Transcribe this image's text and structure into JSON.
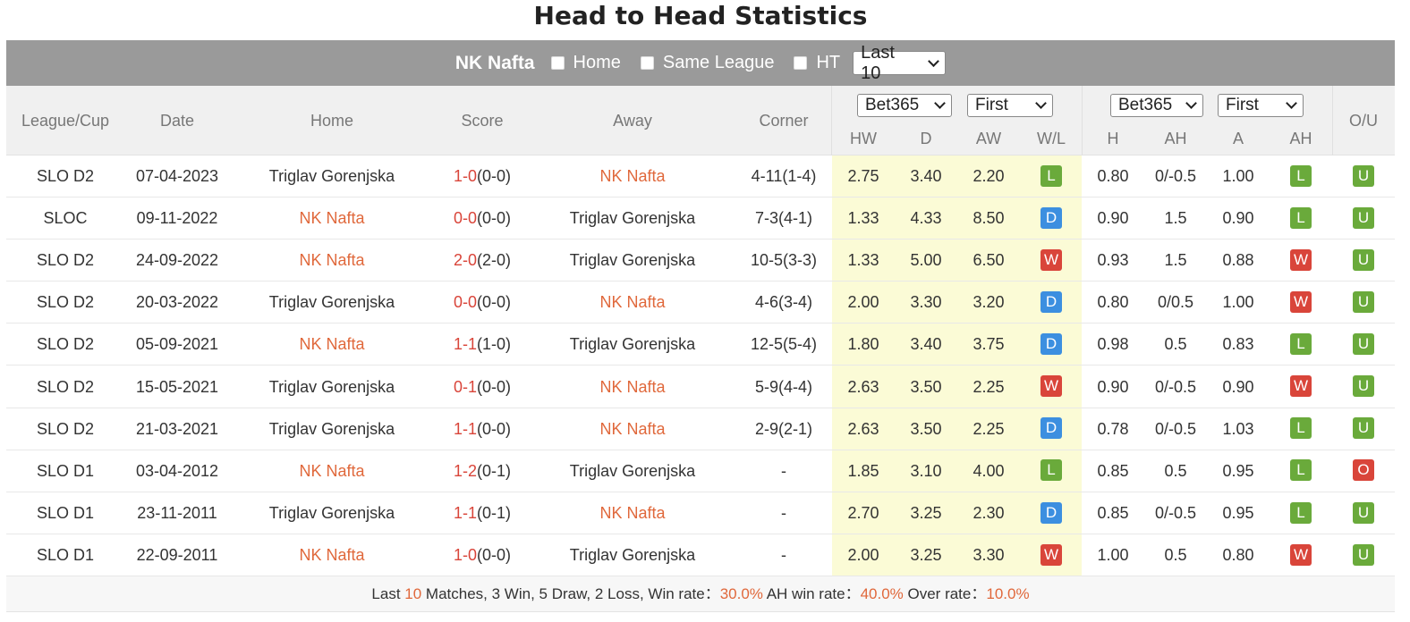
{
  "title": "Head to Head Statistics",
  "toolbar": {
    "team": "NK Nafta",
    "home_label": "Home",
    "same_league_label": "Same League",
    "ht_label": "HT",
    "range_select": "Last 10"
  },
  "header": {
    "league": "League/Cup",
    "date": "Date",
    "home": "Home",
    "score": "Score",
    "away": "Away",
    "corner": "Corner",
    "odds_book_1": "Bet365",
    "odds_type_1": "First",
    "odds_book_2": "Bet365",
    "odds_type_2": "First",
    "hw": "HW",
    "d": "D",
    "aw": "AW",
    "wl": "W/L",
    "h": "H",
    "ah": "AH",
    "a": "A",
    "ah2": "AH",
    "ou": "O/U"
  },
  "rows": [
    {
      "league": "SLO D2",
      "date": "07-04-2023",
      "home": "Triglav Gorenjska",
      "home_hl": false,
      "score": "1-0",
      "ht": "(0-0)",
      "away": "NK Nafta",
      "away_hl": true,
      "corner": "4-11(1-4)",
      "hw": "2.75",
      "d": "3.40",
      "aw": "2.20",
      "wl": "L",
      "h": "0.80",
      "ah": "0/-0.5",
      "a": "1.00",
      "ahr": "L",
      "ou": "U"
    },
    {
      "league": "SLOC",
      "date": "09-11-2022",
      "home": "NK Nafta",
      "home_hl": true,
      "score": "0-0",
      "ht": "(0-0)",
      "away": "Triglav Gorenjska",
      "away_hl": false,
      "corner": "7-3(4-1)",
      "hw": "1.33",
      "d": "4.33",
      "aw": "8.50",
      "wl": "D",
      "h": "0.90",
      "ah": "1.5",
      "a": "0.90",
      "ahr": "L",
      "ou": "U"
    },
    {
      "league": "SLO D2",
      "date": "24-09-2022",
      "home": "NK Nafta",
      "home_hl": true,
      "score": "2-0",
      "ht": "(2-0)",
      "away": "Triglav Gorenjska",
      "away_hl": false,
      "corner": "10-5(3-3)",
      "hw": "1.33",
      "d": "5.00",
      "aw": "6.50",
      "wl": "W",
      "h": "0.93",
      "ah": "1.5",
      "a": "0.88",
      "ahr": "W",
      "ou": "U"
    },
    {
      "league": "SLO D2",
      "date": "20-03-2022",
      "home": "Triglav Gorenjska",
      "home_hl": false,
      "score": "0-0",
      "ht": "(0-0)",
      "away": "NK Nafta",
      "away_hl": true,
      "corner": "4-6(3-4)",
      "hw": "2.00",
      "d": "3.30",
      "aw": "3.20",
      "wl": "D",
      "h": "0.80",
      "ah": "0/0.5",
      "a": "1.00",
      "ahr": "W",
      "ou": "U"
    },
    {
      "league": "SLO D2",
      "date": "05-09-2021",
      "home": "NK Nafta",
      "home_hl": true,
      "score": "1-1",
      "ht": "(1-0)",
      "away": "Triglav Gorenjska",
      "away_hl": false,
      "corner": "12-5(5-4)",
      "hw": "1.80",
      "d": "3.40",
      "aw": "3.75",
      "wl": "D",
      "h": "0.98",
      "ah": "0.5",
      "a": "0.83",
      "ahr": "L",
      "ou": "U"
    },
    {
      "league": "SLO D2",
      "date": "15-05-2021",
      "home": "Triglav Gorenjska",
      "home_hl": false,
      "score": "0-1",
      "ht": "(0-0)",
      "away": "NK Nafta",
      "away_hl": true,
      "corner": "5-9(4-4)",
      "hw": "2.63",
      "d": "3.50",
      "aw": "2.25",
      "wl": "W",
      "h": "0.90",
      "ah": "0/-0.5",
      "a": "0.90",
      "ahr": "W",
      "ou": "U"
    },
    {
      "league": "SLO D2",
      "date": "21-03-2021",
      "home": "Triglav Gorenjska",
      "home_hl": false,
      "score": "1-1",
      "ht": "(0-0)",
      "away": "NK Nafta",
      "away_hl": true,
      "corner": "2-9(2-1)",
      "hw": "2.63",
      "d": "3.50",
      "aw": "2.25",
      "wl": "D",
      "h": "0.78",
      "ah": "0/-0.5",
      "a": "1.03",
      "ahr": "L",
      "ou": "U"
    },
    {
      "league": "SLO D1",
      "date": "03-04-2012",
      "home": "NK Nafta",
      "home_hl": true,
      "score": "1-2",
      "ht": "(0-1)",
      "away": "Triglav Gorenjska",
      "away_hl": false,
      "corner": "-",
      "hw": "1.85",
      "d": "3.10",
      "aw": "4.00",
      "wl": "L",
      "h": "0.85",
      "ah": "0.5",
      "a": "0.95",
      "ahr": "L",
      "ou": "O"
    },
    {
      "league": "SLO D1",
      "date": "23-11-2011",
      "home": "Triglav Gorenjska",
      "home_hl": false,
      "score": "1-1",
      "ht": "(0-1)",
      "away": "NK Nafta",
      "away_hl": true,
      "corner": "-",
      "hw": "2.70",
      "d": "3.25",
      "aw": "2.30",
      "wl": "D",
      "h": "0.85",
      "ah": "0/-0.5",
      "a": "0.95",
      "ahr": "L",
      "ou": "U"
    },
    {
      "league": "SLO D1",
      "date": "22-09-2011",
      "home": "NK Nafta",
      "home_hl": true,
      "score": "1-0",
      "ht": "(0-0)",
      "away": "Triglav Gorenjska",
      "away_hl": false,
      "corner": "-",
      "hw": "2.00",
      "d": "3.25",
      "aw": "3.30",
      "wl": "W",
      "h": "1.00",
      "ah": "0.5",
      "a": "0.80",
      "ahr": "W",
      "ou": "U"
    }
  ],
  "footer": {
    "p1": "Last ",
    "count": "10",
    "p2": " Matches, 3 Win, 5 Draw, 2 Loss, Win rate：",
    "win_rate": "30.0%",
    "p3": " AH win rate：",
    "ah_rate": "40.0%",
    "p4": " Over rate：",
    "over_rate": "10.0%"
  },
  "colors": {
    "orange": "#e0683b",
    "win": "#d9453a",
    "draw": "#3c8fe0",
    "loss": "#6aaa3b",
    "toolbar": "#9a9a9a",
    "odds_highlight": "#fbfbd6"
  }
}
